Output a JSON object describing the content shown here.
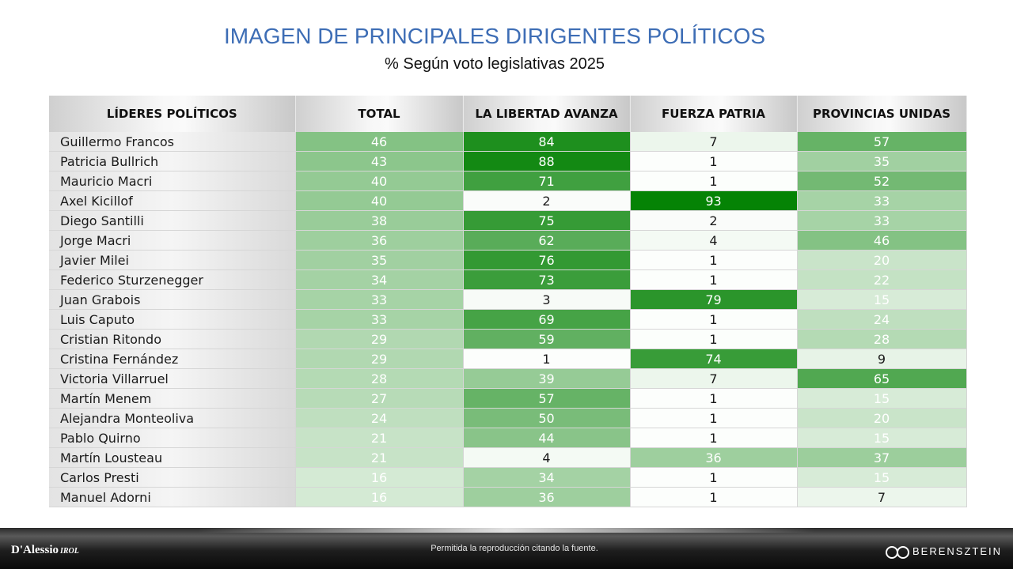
{
  "title": "IMAGEN DE PRINCIPALES DIRIGENTES POLÍTICOS",
  "subtitle": "% Según voto legislativas 2025",
  "footer": {
    "left_brand": "D'Alessio",
    "left_brand_small": "IROL",
    "center_text": "Permitida la reproducción citando la fuente.",
    "right_brand": "BERENSZTEIN"
  },
  "chart_data": {
    "type": "heatmap",
    "title": "IMAGEN DE PRINCIPALES DIRIGENTES POLÍTICOS",
    "subtitle": "% Según voto legislativas 2025",
    "columns": [
      "LÍDERES POLÍTICOS",
      "TOTAL",
      "LA LIBERTAD AVANZA",
      "FUERZA PATRIA",
      "PROVINCIAS UNIDAS"
    ],
    "rows": [
      {
        "name": "Guillermo Francos",
        "values": [
          46,
          84,
          7,
          57
        ]
      },
      {
        "name": "Patricia Bullrich",
        "values": [
          43,
          88,
          1,
          35
        ]
      },
      {
        "name": "Mauricio Macri",
        "values": [
          40,
          71,
          1,
          52
        ]
      },
      {
        "name": "Axel Kicillof",
        "values": [
          40,
          2,
          93,
          33
        ]
      },
      {
        "name": "Diego Santilli",
        "values": [
          38,
          75,
          2,
          33
        ]
      },
      {
        "name": "Jorge Macri",
        "values": [
          36,
          62,
          4,
          46
        ]
      },
      {
        "name": "Javier Milei",
        "values": [
          35,
          76,
          1,
          20
        ]
      },
      {
        "name": "Federico Sturzenegger",
        "values": [
          34,
          73,
          1,
          22
        ]
      },
      {
        "name": "Juan Grabois",
        "values": [
          33,
          3,
          79,
          15
        ]
      },
      {
        "name": "Luis Caputo",
        "values": [
          33,
          69,
          1,
          24
        ]
      },
      {
        "name": "Cristian Ritondo",
        "values": [
          29,
          59,
          1,
          28
        ]
      },
      {
        "name": "Cristina Fernández",
        "values": [
          29,
          1,
          74,
          9
        ]
      },
      {
        "name": "Victoria Villarruel",
        "values": [
          28,
          39,
          7,
          65
        ]
      },
      {
        "name": "Martín Menem",
        "values": [
          27,
          57,
          1,
          15
        ]
      },
      {
        "name": "Alejandra Monteoliva",
        "values": [
          24,
          50,
          1,
          20
        ]
      },
      {
        "name": "Pablo Quirno",
        "values": [
          21,
          44,
          1,
          15
        ]
      },
      {
        "name": "Martín Lousteau",
        "values": [
          21,
          4,
          36,
          37
        ]
      },
      {
        "name": "Carlos Presti",
        "values": [
          16,
          34,
          1,
          15
        ]
      },
      {
        "name": "Manuel Adorni",
        "values": [
          16,
          36,
          1,
          7
        ]
      }
    ],
    "color_scale": {
      "low": "#ffffff",
      "high": "#008000"
    }
  }
}
